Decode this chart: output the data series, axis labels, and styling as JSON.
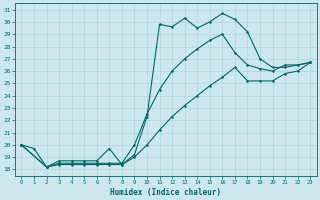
{
  "xlabel": "Humidex (Indice chaleur)",
  "bg_color": "#cce8ee",
  "line_color": "#006666",
  "grid_color": "#b0d4da",
  "xlim": [
    -0.5,
    23.5
  ],
  "ylim": [
    17.5,
    31.5
  ],
  "yticks": [
    18,
    19,
    20,
    21,
    22,
    23,
    24,
    25,
    26,
    27,
    28,
    29,
    30,
    31
  ],
  "xticks": [
    0,
    1,
    2,
    3,
    4,
    5,
    6,
    7,
    8,
    9,
    10,
    11,
    12,
    13,
    14,
    15,
    16,
    17,
    18,
    19,
    20,
    21,
    22,
    23
  ],
  "line1_x": [
    0,
    1,
    2,
    3,
    4,
    5,
    6,
    7,
    8,
    9,
    10,
    11,
    12,
    13,
    14,
    15,
    16,
    17,
    18,
    19,
    20,
    21,
    22,
    23
  ],
  "line1_y": [
    20.0,
    19.7,
    18.2,
    18.7,
    18.7,
    18.7,
    18.7,
    19.7,
    18.4,
    19.2,
    22.3,
    29.8,
    29.6,
    30.3,
    29.5,
    30.0,
    30.7,
    30.2,
    29.2,
    27.0,
    26.3,
    26.3,
    26.5,
    26.7
  ],
  "line2_x": [
    0,
    2,
    3,
    4,
    5,
    6,
    7,
    8,
    9,
    10,
    11,
    12,
    13,
    14,
    15,
    16,
    17,
    18,
    19,
    20,
    21,
    22,
    23
  ],
  "line2_y": [
    20.0,
    18.2,
    18.5,
    18.5,
    18.5,
    18.5,
    18.5,
    18.5,
    20.0,
    22.5,
    24.5,
    26.0,
    27.0,
    27.8,
    28.5,
    29.0,
    27.5,
    26.5,
    26.2,
    26.0,
    26.5,
    26.5,
    26.7
  ],
  "line3_x": [
    0,
    2,
    3,
    4,
    5,
    6,
    7,
    8,
    9,
    10,
    11,
    12,
    13,
    14,
    15,
    16,
    17,
    18,
    19,
    20,
    21,
    22,
    23
  ],
  "line3_y": [
    20.0,
    18.2,
    18.4,
    18.4,
    18.4,
    18.4,
    18.4,
    18.4,
    19.0,
    20.0,
    21.2,
    22.3,
    23.2,
    24.0,
    24.8,
    25.5,
    26.3,
    25.2,
    25.2,
    25.2,
    25.8,
    26.0,
    26.7
  ]
}
